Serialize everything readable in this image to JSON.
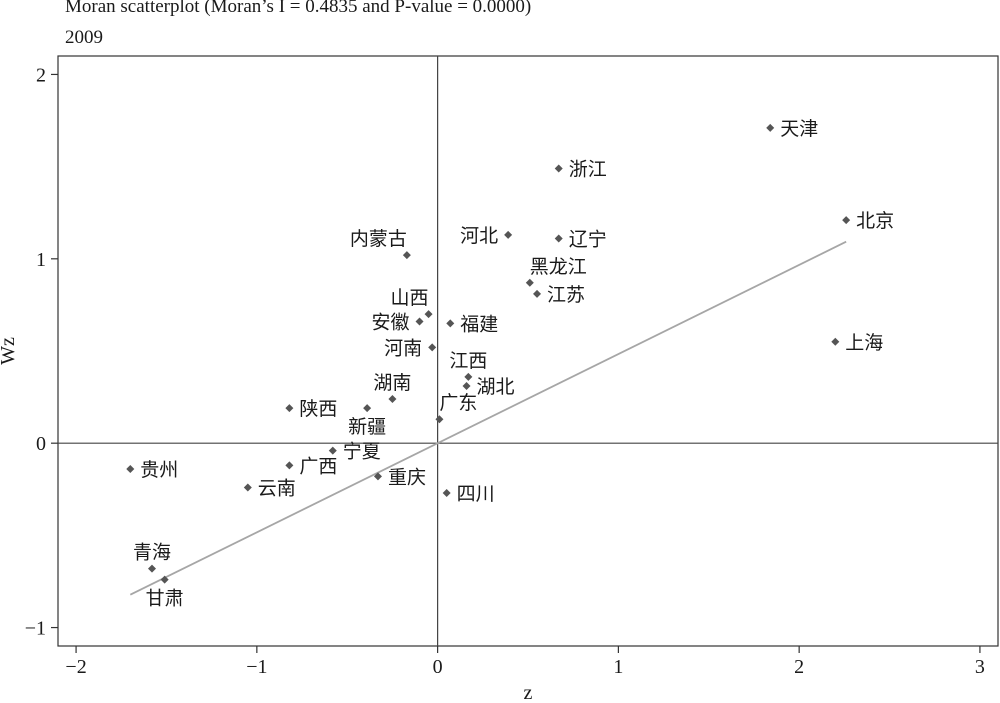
{
  "chart_data": {
    "type": "scatter",
    "title": "Moran scatterplot (Moran’s I = 0.4835 and P-value = 0.0000)",
    "subtitle": "2009",
    "xlabel": "z",
    "ylabel": "Wz",
    "xlim": [
      -2.1,
      3.1
    ],
    "ylim": [
      -1.1,
      2.1
    ],
    "x_ticks": [
      -2,
      -1,
      0,
      1,
      2,
      3
    ],
    "y_ticks": [
      -1,
      0,
      1,
      2
    ],
    "x_tick_labels": [
      "−2",
      "−1",
      "0",
      "1",
      "2",
      "3"
    ],
    "y_tick_labels": [
      "−1",
      "0",
      "1",
      "2"
    ],
    "reference_lines": {
      "x": 0,
      "y": 0
    },
    "fit_line": {
      "slope": 0.4835,
      "x_range": [
        -1.7,
        2.26
      ]
    },
    "colors": {
      "points": "#555555",
      "fit_line": "#a6a6a6",
      "axes": "#444444"
    },
    "points": [
      {
        "label": "天津",
        "x": 1.84,
        "y": 1.71,
        "label_pos": "right"
      },
      {
        "label": "浙江",
        "x": 0.67,
        "y": 1.49,
        "label_pos": "right"
      },
      {
        "label": "北京",
        "x": 2.26,
        "y": 1.21,
        "label_pos": "right"
      },
      {
        "label": "河北",
        "x": 0.39,
        "y": 1.13,
        "label_pos": "left"
      },
      {
        "label": "辽宁",
        "x": 0.67,
        "y": 1.11,
        "label_pos": "right"
      },
      {
        "label": "内蒙古",
        "x": -0.17,
        "y": 1.02,
        "label_pos": "above-left"
      },
      {
        "label": "黑龙江",
        "x": 0.51,
        "y": 0.87,
        "label_pos": "above-right"
      },
      {
        "label": "江苏",
        "x": 0.55,
        "y": 0.81,
        "label_pos": "right"
      },
      {
        "label": "山西",
        "x": -0.05,
        "y": 0.7,
        "label_pos": "above-left"
      },
      {
        "label": "安徽",
        "x": -0.1,
        "y": 0.66,
        "label_pos": "left"
      },
      {
        "label": "福建",
        "x": 0.07,
        "y": 0.65,
        "label_pos": "right"
      },
      {
        "label": "上海",
        "x": 2.2,
        "y": 0.55,
        "label_pos": "right"
      },
      {
        "label": "河南",
        "x": -0.03,
        "y": 0.52,
        "label_pos": "left"
      },
      {
        "label": "江西",
        "x": 0.17,
        "y": 0.36,
        "label_pos": "above"
      },
      {
        "label": "湖北",
        "x": 0.16,
        "y": 0.31,
        "label_pos": "right"
      },
      {
        "label": "湖南",
        "x": -0.25,
        "y": 0.24,
        "label_pos": "above"
      },
      {
        "label": "陕西",
        "x": -0.82,
        "y": 0.19,
        "label_pos": "right"
      },
      {
        "label": "新疆",
        "x": -0.39,
        "y": 0.19,
        "label_pos": "below"
      },
      {
        "label": "广东",
        "x": 0.01,
        "y": 0.13,
        "label_pos": "above-right"
      },
      {
        "label": "宁夏",
        "x": -0.58,
        "y": -0.04,
        "label_pos": "right"
      },
      {
        "label": "贵州",
        "x": -1.7,
        "y": -0.14,
        "label_pos": "right"
      },
      {
        "label": "广西",
        "x": -0.82,
        "y": -0.12,
        "label_pos": "right"
      },
      {
        "label": "重庆",
        "x": -0.33,
        "y": -0.18,
        "label_pos": "right"
      },
      {
        "label": "云南",
        "x": -1.05,
        "y": -0.24,
        "label_pos": "right"
      },
      {
        "label": "四川",
        "x": 0.05,
        "y": -0.27,
        "label_pos": "right"
      },
      {
        "label": "青海",
        "x": -1.58,
        "y": -0.68,
        "label_pos": "above"
      },
      {
        "label": "甘肃",
        "x": -1.51,
        "y": -0.74,
        "label_pos": "below"
      }
    ]
  }
}
